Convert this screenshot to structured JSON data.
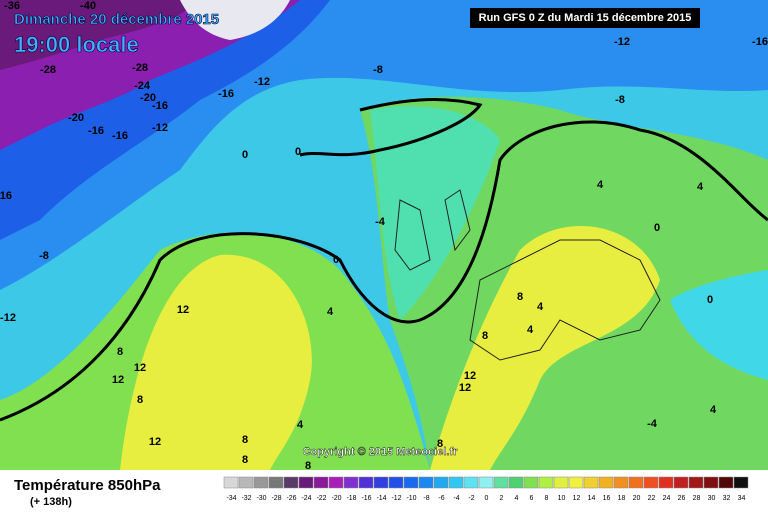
{
  "header": {
    "date": "Dimanche 20 décembre 2015",
    "time": "19:00 locale",
    "run": "Run GFS 0 Z du Mardi 15 décembre 2015"
  },
  "footer": {
    "title": "Température 850hPa",
    "lead": "(+ 138h)"
  },
  "copyright": "Copyright © 2015 Meteociel.fr",
  "colorbar": {
    "ticks": [
      -34,
      -32,
      -30,
      -28,
      -26,
      -24,
      -22,
      -20,
      -18,
      -16,
      -14,
      -12,
      -10,
      -8,
      -6,
      -4,
      -2,
      0,
      2,
      4,
      6,
      8,
      10,
      12,
      14,
      16,
      18,
      20,
      22,
      24,
      26,
      28,
      30,
      32,
      34
    ],
    "colors": [
      "#d8d8d8",
      "#b8b8b8",
      "#989898",
      "#787878",
      "#5a3a6a",
      "#6a1a7a",
      "#8a1a9a",
      "#a820b8",
      "#8030d0",
      "#5030d8",
      "#3040e0",
      "#2050e8",
      "#1a6af0",
      "#1a88f0",
      "#20a8f0",
      "#30c8f0",
      "#60e0f0",
      "#90f0f0",
      "#60e0a0",
      "#50d070",
      "#80e050",
      "#b0f040",
      "#e0f040",
      "#f0f040",
      "#f0d030",
      "#f0b020",
      "#f09020",
      "#f07020",
      "#f05020",
      "#e03020",
      "#c02020",
      "#a01818",
      "#801010",
      "#500808",
      "#101010"
    ]
  },
  "contour_labels": [
    -36,
    -40,
    -28,
    -28,
    -24,
    -20,
    -16,
    -12,
    -16,
    -12,
    -20,
    -16,
    -16,
    -16,
    -8,
    -12,
    -12,
    -16,
    -8,
    -8,
    0,
    0,
    -4,
    0,
    4,
    12,
    8,
    12,
    12,
    8,
    12,
    8,
    8,
    4,
    8,
    12,
    12,
    8,
    8,
    4,
    4,
    0,
    4,
    0,
    4,
    -4,
    4,
    8
  ]
}
